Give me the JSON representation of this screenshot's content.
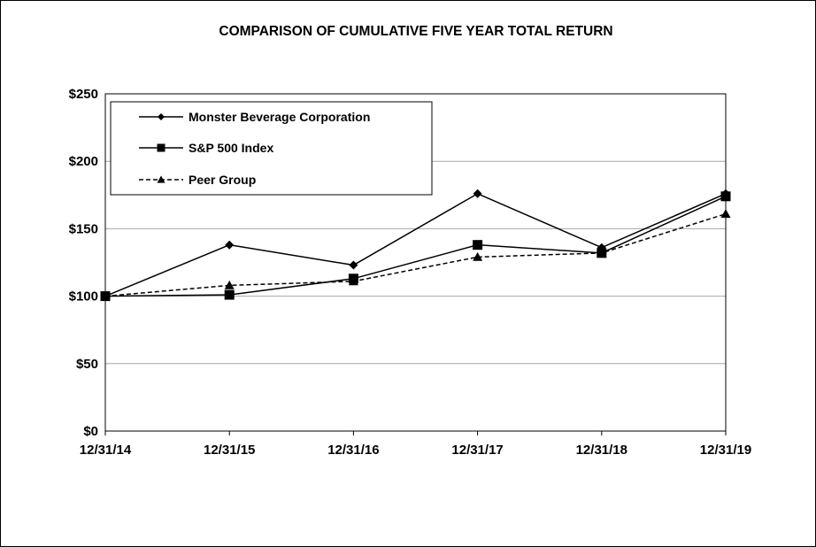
{
  "chart_data": {
    "type": "line",
    "title": "COMPARISON OF CUMULATIVE FIVE YEAR TOTAL RETURN",
    "categories": [
      "12/31/14",
      "12/31/15",
      "12/31/16",
      "12/31/17",
      "12/31/18",
      "12/31/19"
    ],
    "y_tick_labels": [
      "$0",
      "$50",
      "$100",
      "$150",
      "$200",
      "$250"
    ],
    "y_ticks": [
      0,
      50,
      100,
      150,
      200,
      250
    ],
    "ylim": [
      0,
      250
    ],
    "grid": "horizontal",
    "legend_position": "top-left",
    "series": [
      {
        "name": "Monster Beverage Corporation",
        "marker": "diamond",
        "line": "solid",
        "values": [
          100,
          138,
          123,
          176,
          136,
          176
        ]
      },
      {
        "name": "S&P 500 Index",
        "marker": "square",
        "line": "solid",
        "values": [
          100,
          101,
          113,
          138,
          132,
          174
        ]
      },
      {
        "name": "Peer Group",
        "marker": "triangle",
        "line": "dashed",
        "values": [
          100,
          108,
          111,
          129,
          132,
          161
        ]
      }
    ],
    "colors": {
      "lines": "#000000",
      "grid": "#a6a6a6",
      "background": "#ffffff"
    }
  }
}
